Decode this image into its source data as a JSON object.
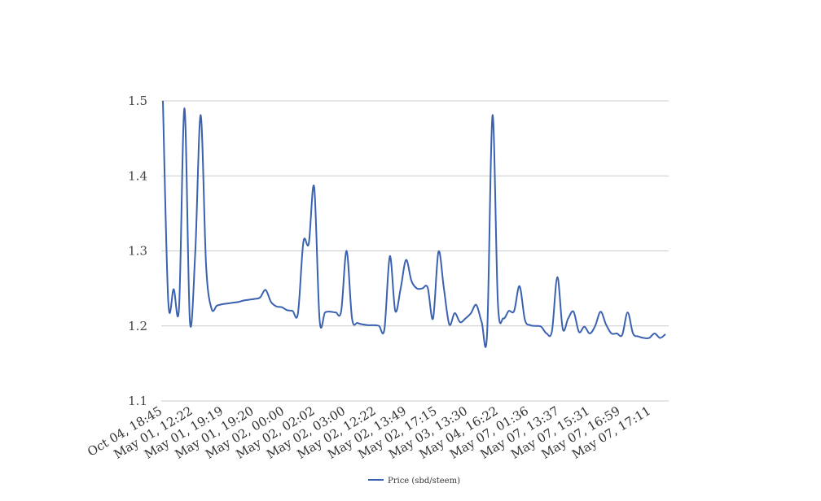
{
  "chart_data": {
    "type": "line",
    "title": "",
    "xlabel": "",
    "ylabel": "",
    "ylim": [
      1.1,
      1.5
    ],
    "y_ticks": [
      "1.1",
      "1.2",
      "1.3",
      "1.4",
      "1.5"
    ],
    "x_tick_labels": [
      "Oct 04, 18:45",
      "May 01, 12:22",
      "May 01, 19:19",
      "May 01, 19:20",
      "May 02, 00:00",
      "May 02, 02:02",
      "May 02, 03:00",
      "May 02, 12:22",
      "May 02, 13:49",
      "May 02, 17:15",
      "May 03, 13:30",
      "May 04, 16:22",
      "May 07, 01:36",
      "May 07, 13:37",
      "May 07, 15:31",
      "May 07, 16:59",
      "May 07, 17:11"
    ],
    "grid": true,
    "legend_position": "bottom",
    "series": [
      {
        "name": "Price (sbd/steem)",
        "color": "#3b62b0",
        "values": [
          1.5,
          1.232,
          1.249,
          1.226,
          1.49,
          1.206,
          1.3,
          1.481,
          1.28,
          1.223,
          1.227,
          1.229,
          1.23,
          1.231,
          1.232,
          1.234,
          1.235,
          1.236,
          1.238,
          1.248,
          1.232,
          1.226,
          1.225,
          1.221,
          1.22,
          1.217,
          1.312,
          1.31,
          1.385,
          1.208,
          1.218,
          1.219,
          1.218,
          1.22,
          1.3,
          1.21,
          1.204,
          1.202,
          1.201,
          1.201,
          1.2,
          1.196,
          1.293,
          1.22,
          1.25,
          1.288,
          1.26,
          1.25,
          1.25,
          1.251,
          1.21,
          1.299,
          1.25,
          1.202,
          1.217,
          1.205,
          1.21,
          1.217,
          1.228,
          1.205,
          1.19,
          1.481,
          1.23,
          1.21,
          1.22,
          1.22,
          1.253,
          1.208,
          1.201,
          1.2,
          1.199,
          1.19,
          1.193,
          1.265,
          1.196,
          1.21,
          1.219,
          1.192,
          1.199,
          1.19,
          1.2,
          1.219,
          1.202,
          1.19,
          1.19,
          1.188,
          1.218,
          1.19,
          1.186,
          1.184,
          1.184,
          1.19,
          1.184,
          1.189
        ]
      }
    ]
  }
}
